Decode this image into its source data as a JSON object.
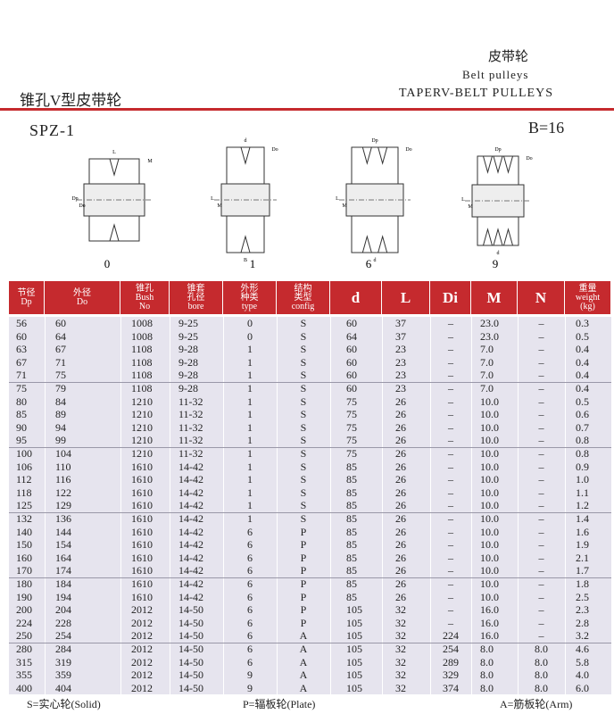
{
  "header": {
    "title_cn": "锥孔V型皮带轮",
    "right_cn": "皮带轮",
    "right_en": "Belt pulleys",
    "right_en2": "TAPERV-BELT PULLEYS"
  },
  "spec": {
    "model": "SPZ-1",
    "width": "B=16"
  },
  "diagrams": [
    {
      "label": "0",
      "dims": [
        "Dp",
        "Do",
        "M",
        "L"
      ]
    },
    {
      "label": "1",
      "dims": [
        "L",
        "M",
        "Do",
        "d",
        "B"
      ]
    },
    {
      "label": "6",
      "dims": [
        "L",
        "M",
        "Do",
        "Dp",
        "d"
      ]
    },
    {
      "label": "9",
      "dims": [
        "L",
        "M",
        "Do",
        "Dp",
        "d"
      ]
    }
  ],
  "table": {
    "columns": [
      [
        "节径",
        "Dp"
      ],
      [
        "外径",
        "Do"
      ],
      [
        "锥孔",
        "Bush",
        "No"
      ],
      [
        "锥套",
        "孔径",
        "bore"
      ],
      [
        "外形",
        "种类",
        "type"
      ],
      [
        "结构",
        "类型",
        "config"
      ],
      [
        "d"
      ],
      [
        "L"
      ],
      [
        "Di"
      ],
      [
        "M"
      ],
      [
        "N"
      ],
      [
        "重量",
        "weight",
        "(kg)"
      ]
    ],
    "rows": [
      [
        "56",
        "60",
        "1008",
        "9-25",
        "0",
        "S",
        "60",
        "37",
        "–",
        "23.0",
        "–",
        "0.3"
      ],
      [
        "60",
        "64",
        "1008",
        "9-25",
        "0",
        "S",
        "64",
        "37",
        "–",
        "23.0",
        "–",
        "0.5"
      ],
      [
        "63",
        "67",
        "1108",
        "9-28",
        "1",
        "S",
        "60",
        "23",
        "–",
        "7.0",
        "–",
        "0.4"
      ],
      [
        "67",
        "71",
        "1108",
        "9-28",
        "1",
        "S",
        "60",
        "23",
        "–",
        "7.0",
        "–",
        "0.4"
      ],
      [
        "71",
        "75",
        "1108",
        "9-28",
        "1",
        "S",
        "60",
        "23",
        "–",
        "7.0",
        "–",
        "0.4"
      ],
      [
        "75",
        "79",
        "1108",
        "9-28",
        "1",
        "S",
        "60",
        "23",
        "–",
        "7.0",
        "–",
        "0.4"
      ],
      [
        "80",
        "84",
        "1210",
        "11-32",
        "1",
        "S",
        "75",
        "26",
        "–",
        "10.0",
        "–",
        "0.5"
      ],
      [
        "85",
        "89",
        "1210",
        "11-32",
        "1",
        "S",
        "75",
        "26",
        "–",
        "10.0",
        "–",
        "0.6"
      ],
      [
        "90",
        "94",
        "1210",
        "11-32",
        "1",
        "S",
        "75",
        "26",
        "–",
        "10.0",
        "–",
        "0.7"
      ],
      [
        "95",
        "99",
        "1210",
        "11-32",
        "1",
        "S",
        "75",
        "26",
        "–",
        "10.0",
        "–",
        "0.8"
      ],
      [
        "100",
        "104",
        "1210",
        "11-32",
        "1",
        "S",
        "75",
        "26",
        "–",
        "10.0",
        "–",
        "0.8"
      ],
      [
        "106",
        "110",
        "1610",
        "14-42",
        "1",
        "S",
        "85",
        "26",
        "–",
        "10.0",
        "–",
        "0.9"
      ],
      [
        "112",
        "116",
        "1610",
        "14-42",
        "1",
        "S",
        "85",
        "26",
        "–",
        "10.0",
        "–",
        "1.0"
      ],
      [
        "118",
        "122",
        "1610",
        "14-42",
        "1",
        "S",
        "85",
        "26",
        "–",
        "10.0",
        "–",
        "1.1"
      ],
      [
        "125",
        "129",
        "1610",
        "14-42",
        "1",
        "S",
        "85",
        "26",
        "–",
        "10.0",
        "–",
        "1.2"
      ],
      [
        "132",
        "136",
        "1610",
        "14-42",
        "1",
        "S",
        "85",
        "26",
        "–",
        "10.0",
        "–",
        "1.4"
      ],
      [
        "140",
        "144",
        "1610",
        "14-42",
        "6",
        "P",
        "85",
        "26",
        "–",
        "10.0",
        "–",
        "1.6"
      ],
      [
        "150",
        "154",
        "1610",
        "14-42",
        "6",
        "P",
        "85",
        "26",
        "–",
        "10.0",
        "–",
        "1.9"
      ],
      [
        "160",
        "164",
        "1610",
        "14-42",
        "6",
        "P",
        "85",
        "26",
        "–",
        "10.0",
        "–",
        "2.1"
      ],
      [
        "170",
        "174",
        "1610",
        "14-42",
        "6",
        "P",
        "85",
        "26",
        "–",
        "10.0",
        "–",
        "1.7"
      ],
      [
        "180",
        "184",
        "1610",
        "14-42",
        "6",
        "P",
        "85",
        "26",
        "–",
        "10.0",
        "–",
        "1.8"
      ],
      [
        "190",
        "194",
        "1610",
        "14-42",
        "6",
        "P",
        "85",
        "26",
        "–",
        "10.0",
        "–",
        "2.5"
      ],
      [
        "200",
        "204",
        "2012",
        "14-50",
        "6",
        "P",
        "105",
        "32",
        "–",
        "16.0",
        "–",
        "2.3"
      ],
      [
        "224",
        "228",
        "2012",
        "14-50",
        "6",
        "P",
        "105",
        "32",
        "–",
        "16.0",
        "–",
        "2.8"
      ],
      [
        "250",
        "254",
        "2012",
        "14-50",
        "6",
        "A",
        "105",
        "32",
        "224",
        "16.0",
        "–",
        "3.2"
      ],
      [
        "280",
        "284",
        "2012",
        "14-50",
        "6",
        "A",
        "105",
        "32",
        "254",
        "8.0",
        "8.0",
        "4.6"
      ],
      [
        "315",
        "319",
        "2012",
        "14-50",
        "6",
        "A",
        "105",
        "32",
        "289",
        "8.0",
        "8.0",
        "5.8"
      ],
      [
        "355",
        "359",
        "2012",
        "14-50",
        "9",
        "A",
        "105",
        "32",
        "329",
        "8.0",
        "8.0",
        "4.0"
      ],
      [
        "400",
        "404",
        "2012",
        "14-50",
        "9",
        "A",
        "105",
        "32",
        "374",
        "8.0",
        "8.0",
        "6.0"
      ]
    ]
  },
  "legend": [
    "S=实心轮(Solid)",
    "P=辐板轮(Plate)",
    "A=筋板轮(Arm)"
  ]
}
